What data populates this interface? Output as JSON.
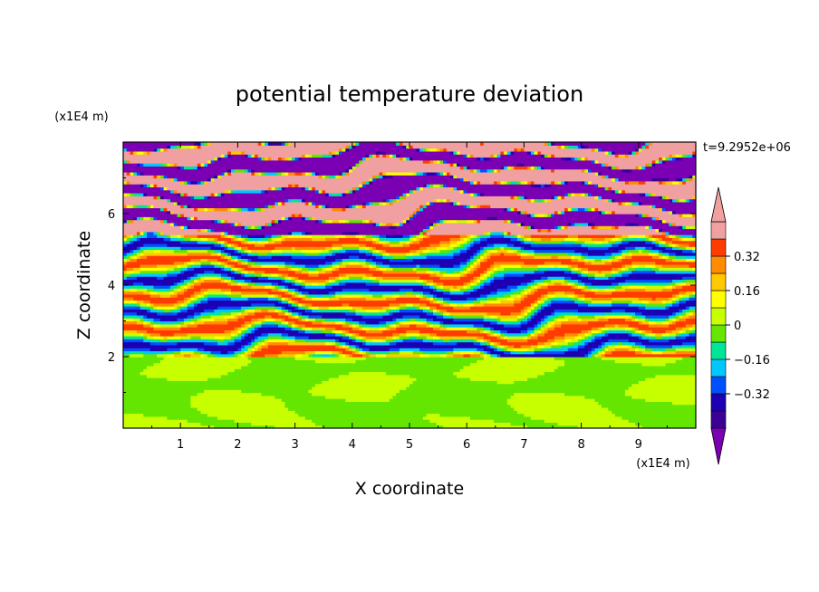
{
  "chart_data": {
    "type": "heatmap",
    "title": "potential temperature deviation",
    "xlabel": "X coordinate",
    "ylabel": "Z coordinate",
    "x_unit": "(x1E4 m)",
    "y_unit": "(x1E4 m)",
    "time_label": "t=9.2952e+06",
    "xlim": [
      0,
      10
    ],
    "ylim": [
      0,
      8
    ],
    "x_ticks": [
      "1",
      "2",
      "3",
      "4",
      "5",
      "6",
      "7",
      "8",
      "9"
    ],
    "y_ticks": [
      "2",
      "4",
      "6"
    ],
    "colorbar": {
      "levels": [
        -0.48,
        -0.4,
        -0.32,
        -0.24,
        -0.16,
        -0.08,
        0,
        0.08,
        0.16,
        0.24,
        0.32,
        0.4,
        0.48
      ],
      "tick_labels": [
        "0.32",
        "0.16",
        "0",
        "−0.16",
        "−0.32"
      ],
      "tick_values": [
        0.32,
        0.16,
        0,
        -0.16,
        -0.32
      ],
      "colors": [
        "#7b00b4",
        "#3c0096",
        "#1e00b4",
        "#0050ff",
        "#00c8ff",
        "#00e696",
        "#64e600",
        "#c8ff00",
        "#ffff00",
        "#ffc800",
        "#ff8c00",
        "#ff3c00",
        "#f0a0a0"
      ],
      "extend": "both"
    },
    "regions": [
      {
        "z_range": [
          0,
          2
        ],
        "description_values": [
          0,
          0.08
        ]
      },
      {
        "z_range": [
          2,
          5.5
        ],
        "description_values": [
          -0.48,
          0.48
        ]
      },
      {
        "z_range": [
          5.5,
          8
        ],
        "description_values": [
          -0.48,
          0.48
        ]
      }
    ]
  }
}
